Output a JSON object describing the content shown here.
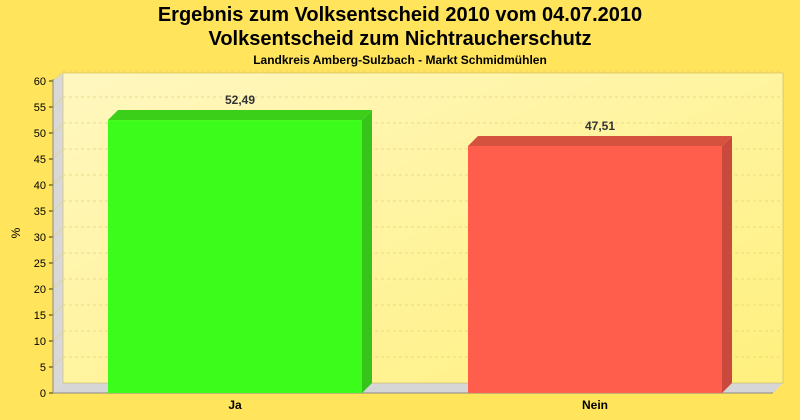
{
  "chart_data": {
    "type": "bar",
    "title": "Ergebnis zum Volksentscheid 2010 vom 04.07.2010",
    "subtitle": "Volksentscheid zum Nichtraucherschutz",
    "caption": "Landkreis Amberg-Sulzbach - Markt Schmidmühlen",
    "xlabel": "",
    "ylabel": "%",
    "categories": [
      "Ja",
      "Nein"
    ],
    "values": [
      52.49,
      47.51
    ],
    "value_labels": [
      "52,49",
      "47,51"
    ],
    "ylim": [
      0,
      60
    ],
    "yticks": [
      0,
      5,
      10,
      15,
      20,
      25,
      30,
      35,
      40,
      45,
      50,
      55,
      60
    ],
    "grid": true,
    "legend": "none",
    "colors": {
      "background": "#ffe45c",
      "plot_bg_top": "#fff7c0",
      "plot_bg_bottom": "#fff07e",
      "bars": [
        "#3cfc1c",
        "#ff5e4c"
      ],
      "bar_sides": [
        "#36c41a",
        "#c94a3c"
      ],
      "bar_tops": [
        "#3ccf1a",
        "#d4523e"
      ]
    }
  }
}
